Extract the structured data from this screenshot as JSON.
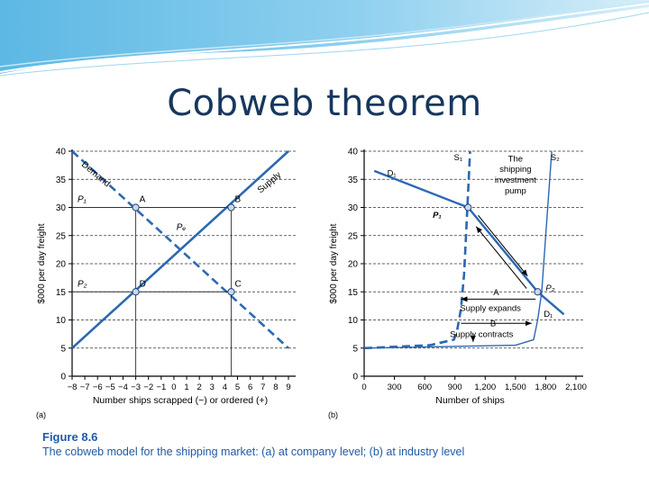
{
  "slide": {
    "title": "Cobweb theorem",
    "colors": {
      "title": "#17375e",
      "banner": "#36a3d8",
      "line": "#2b68b3",
      "axis": "#000000"
    }
  },
  "figure": {
    "number": "Figure 8.6",
    "caption": "The cobweb model for the shipping market: (a) at company level; (b) at industry level"
  },
  "chart_data": [
    {
      "type": "line",
      "panel_label": "(a)",
      "xlabel": "Number ships scrapped (−) or ordered (+)",
      "ylabel": "$000 per day freight",
      "xlim": [
        -8,
        9
      ],
      "ylim": [
        0,
        40
      ],
      "x_ticks": [
        "−8",
        "−7",
        "−6",
        "−5",
        "−4",
        "−3",
        "−2",
        "−1",
        "0",
        "1",
        "2",
        "3",
        "4",
        "5",
        "6",
        "7",
        "8",
        "9"
      ],
      "x_tick_values": [
        -8,
        -7,
        -6,
        -5,
        -4,
        -3,
        -2,
        -1,
        0,
        1,
        2,
        3,
        4,
        5,
        6,
        7,
        8,
        9
      ],
      "y_ticks": [
        0,
        5,
        10,
        15,
        20,
        25,
        30,
        35,
        40
      ],
      "grid": "horizontal dashed",
      "series": [
        {
          "name": "Demand",
          "style": "dashed",
          "x": [
            -8,
            9
          ],
          "y": [
            40,
            5
          ]
        },
        {
          "name": "Supply",
          "style": "solid",
          "x": [
            -8,
            9
          ],
          "y": [
            5,
            40
          ]
        }
      ],
      "points": [
        {
          "label": "A",
          "x": -3,
          "y": 30
        },
        {
          "label": "B",
          "x": 4.5,
          "y": 30
        },
        {
          "label": "C",
          "x": 4.5,
          "y": 15
        },
        {
          "label": "D",
          "x": -3,
          "y": 15
        }
      ],
      "annotations": [
        {
          "text": "P₁",
          "x": -8,
          "y": 30
        },
        {
          "text": "P₂",
          "x": -8,
          "y": 15
        },
        {
          "text": "Pₑ",
          "x": 0.2,
          "y": 26
        },
        {
          "text": "Demand",
          "x": -7.2,
          "y": 38
        },
        {
          "text": "Supply",
          "x": 7.6,
          "y": 36
        }
      ]
    },
    {
      "type": "line",
      "panel_label": "(b)",
      "xlabel": "Number of ships",
      "ylabel": "$000 per day freight",
      "xlim": [
        0,
        2100
      ],
      "ylim": [
        0,
        40
      ],
      "x_ticks": [
        "0",
        "300",
        "600",
        "900",
        "1,200",
        "1,500",
        "1,800",
        "2,100"
      ],
      "x_tick_values": [
        0,
        300,
        600,
        900,
        1200,
        1500,
        1800,
        2100
      ],
      "y_ticks": [
        0,
        5,
        10,
        15,
        20,
        25,
        30,
        35,
        40
      ],
      "grid": "horizontal dashed",
      "series": [
        {
          "name": "D₁",
          "style": "solid",
          "x": [
            100,
            1030,
            1720,
            1980
          ],
          "y": [
            36.5,
            30,
            15,
            11
          ]
        },
        {
          "name": "S₁",
          "style": "dashed",
          "x": [
            0,
            650,
            890,
            920,
            960,
            990,
            1010,
            1050
          ],
          "y": [
            5,
            5.5,
            6.5,
            8,
            12,
            18,
            25,
            40
          ]
        },
        {
          "name": "S₂",
          "style": "solid",
          "x": [
            0,
            1500,
            1680,
            1720,
            1760,
            1800,
            1860
          ],
          "y": [
            5,
            5.5,
            6.5,
            10,
            15,
            25,
            40
          ]
        }
      ],
      "points": [
        {
          "label": "P₁",
          "x": 1030,
          "y": 30
        },
        {
          "label": "P₂",
          "x": 1720,
          "y": 15
        }
      ],
      "annotations": [
        {
          "text": "S₁"
        },
        {
          "text": "S₂"
        },
        {
          "text": "D₁"
        },
        {
          "text": "D₁"
        },
        {
          "text": "P₁"
        },
        {
          "text": "P₂"
        },
        {
          "text": "The"
        },
        {
          "text": "shipping"
        },
        {
          "text": "investment"
        },
        {
          "text": "pump"
        },
        {
          "text": "A"
        },
        {
          "text": "Supply expands"
        },
        {
          "text": "B"
        },
        {
          "text": "Supply contracts"
        }
      ]
    }
  ]
}
